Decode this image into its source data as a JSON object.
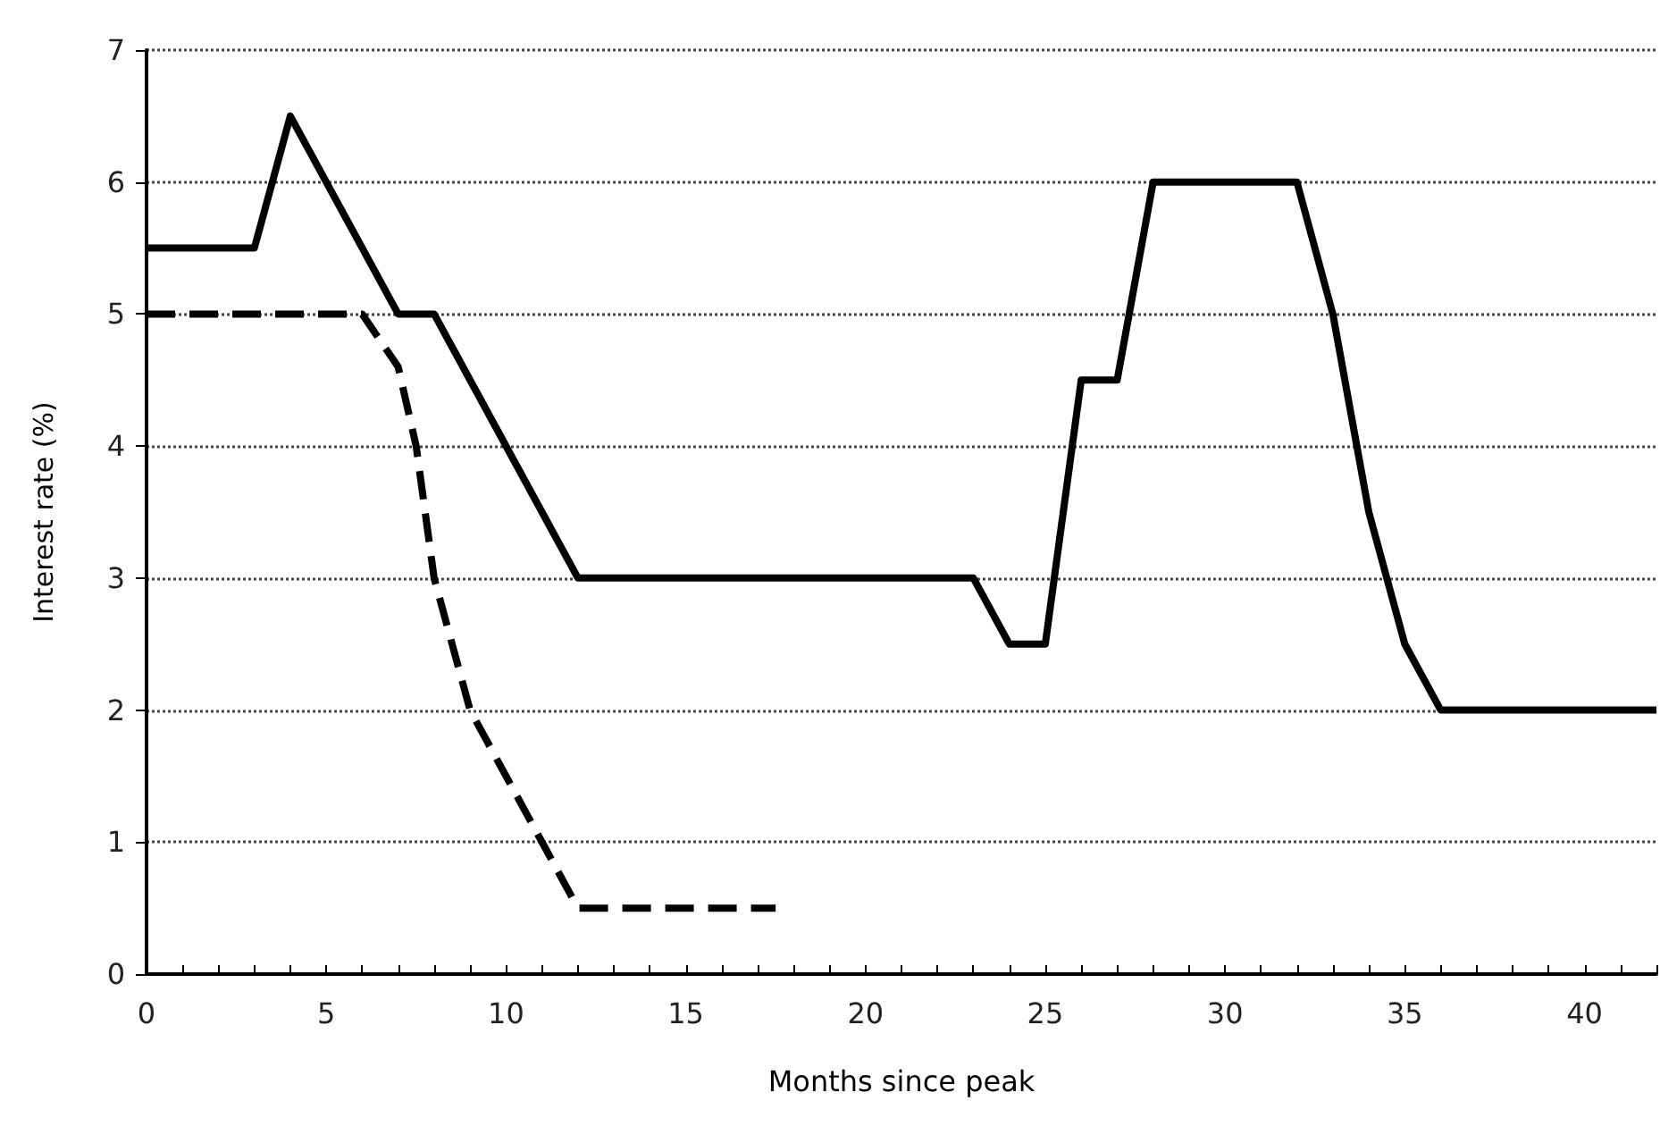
{
  "chart_data": {
    "type": "line",
    "xlabel": "Months since peak",
    "ylabel": "Interest rate (%)",
    "xlim": [
      0,
      42
    ],
    "xticks": [
      0,
      5,
      10,
      15,
      20,
      25,
      30,
      35,
      40
    ],
    "ylim": [
      0,
      7
    ],
    "yticks": [
      0,
      1,
      2,
      3,
      4,
      5,
      6,
      7
    ],
    "grid": "y",
    "marker": "none",
    "series": [
      {
        "color": "#000000",
        "line_style": "solid",
        "x": [
          0,
          3,
          4,
          7,
          8,
          9,
          11,
          12,
          23,
          24,
          25,
          26,
          27,
          28,
          32,
          33,
          34,
          35,
          36,
          42
        ],
        "values": [
          5.5,
          5.5,
          6.5,
          5,
          5,
          4.5,
          3.5,
          3,
          3,
          2.5,
          2.5,
          4.5,
          4.5,
          6,
          6,
          5,
          3.5,
          2.5,
          2,
          2
        ]
      },
      {
        "color": "#000000",
        "line_style": "dashed",
        "x": [
          0,
          6,
          7,
          7.5,
          8,
          9,
          11,
          12,
          17.5
        ],
        "values": [
          5,
          5,
          4.6,
          4,
          3,
          2,
          1,
          0.5,
          0.5
        ]
      }
    ]
  }
}
